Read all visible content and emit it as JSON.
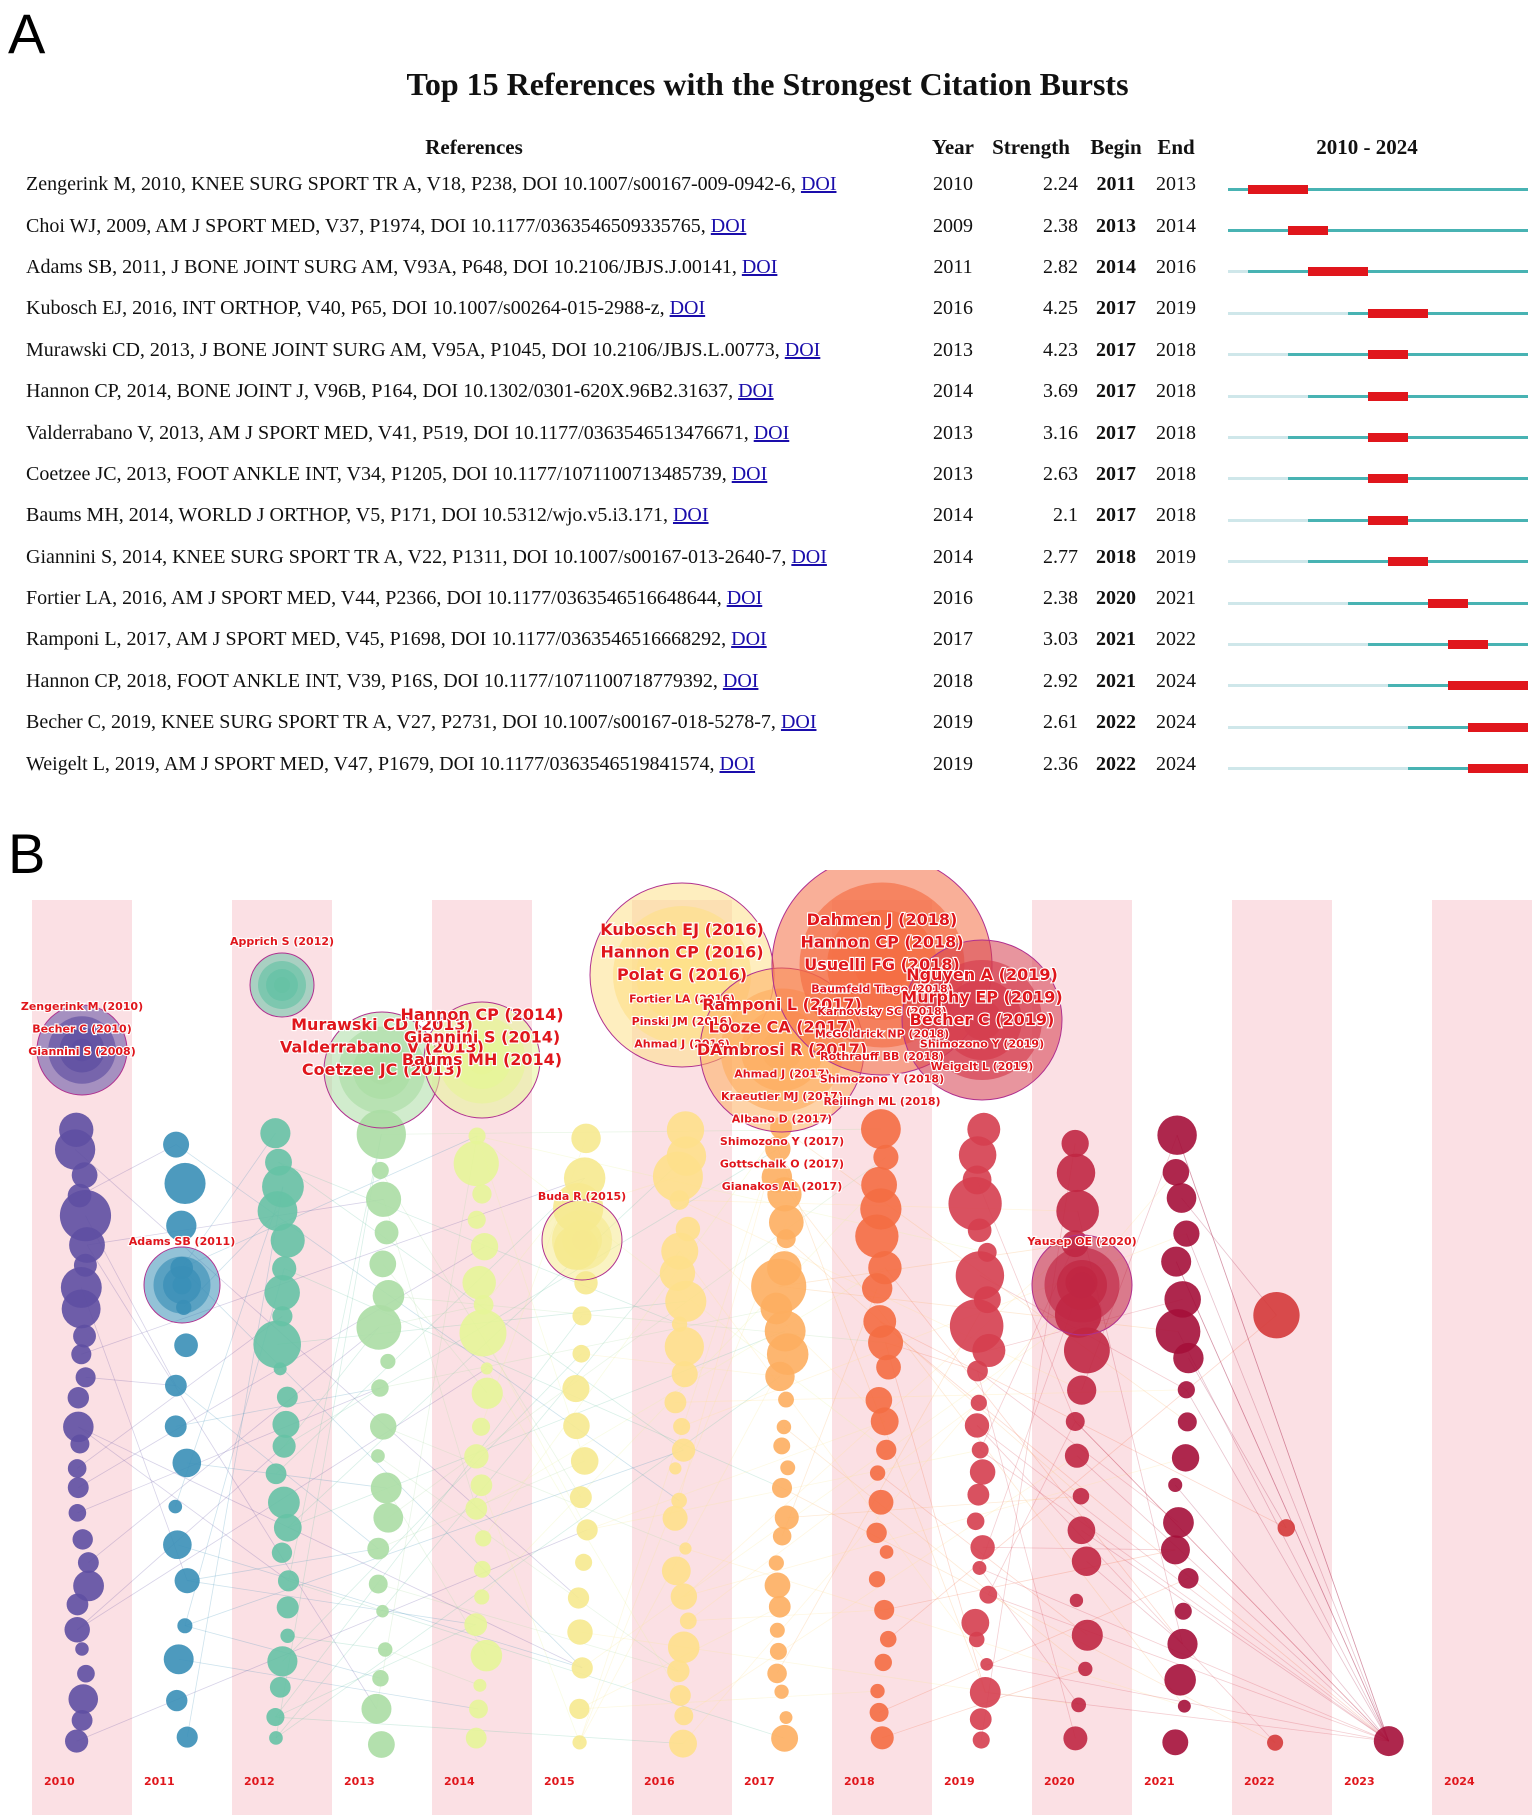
{
  "panel_a": {
    "letter": "A",
    "title": "Top 15 References with the Strongest Citation Bursts",
    "headers": {
      "references": "References",
      "year": "Year",
      "strength": "Strength",
      "begin": "Begin",
      "end": "End",
      "range": "2010 - 2024"
    },
    "doi_label": "DOI"
  },
  "panel_b": {
    "letter": "B"
  },
  "colors": {
    "burst": "#e0161c",
    "active": "#48b3b3",
    "inactive": "#cfe7ea",
    "stripe": "#fbe0e4"
  },
  "chart_data": [
    {
      "type": "table",
      "title": "Top 15 References with the Strongest Citation Bursts",
      "range": [
        2010,
        2024
      ],
      "rows": [
        {
          "ref": "Zengerink M, 2010, KNEE SURG SPORT TR A, V18, P238, DOI 10.1007/s00167-009-0942-6,",
          "year": 2010,
          "strength": "2.24",
          "begin": 2011,
          "end": 2013
        },
        {
          "ref": "Choi WJ, 2009, AM J SPORT MED, V37, P1974, DOI 10.1177/0363546509335765,",
          "year": 2009,
          "strength": "2.38",
          "begin": 2013,
          "end": 2014
        },
        {
          "ref": "Adams SB, 2011, J BONE JOINT SURG AM, V93A, P648, DOI 10.2106/JBJS.J.00141,",
          "year": 2011,
          "strength": "2.82",
          "begin": 2014,
          "end": 2016
        },
        {
          "ref": "Kubosch EJ, 2016, INT ORTHOP, V40, P65, DOI 10.1007/s00264-015-2988-z,",
          "year": 2016,
          "strength": "4.25",
          "begin": 2017,
          "end": 2019
        },
        {
          "ref": "Murawski CD, 2013, J BONE JOINT SURG AM, V95A, P1045, DOI 10.2106/JBJS.L.00773,",
          "year": 2013,
          "strength": "4.23",
          "begin": 2017,
          "end": 2018
        },
        {
          "ref": "Hannon CP, 2014, BONE JOINT J, V96B, P164, DOI 10.1302/0301-620X.96B2.31637,",
          "year": 2014,
          "strength": "3.69",
          "begin": 2017,
          "end": 2018
        },
        {
          "ref": "Valderrabano V, 2013, AM J SPORT MED, V41, P519, DOI 10.1177/0363546513476671,",
          "year": 2013,
          "strength": "3.16",
          "begin": 2017,
          "end": 2018
        },
        {
          "ref": "Coetzee JC, 2013, FOOT ANKLE INT, V34, P1205, DOI 10.1177/1071100713485739,",
          "year": 2013,
          "strength": "2.63",
          "begin": 2017,
          "end": 2018
        },
        {
          "ref": "Baums MH, 2014, WORLD J ORTHOP, V5, P171, DOI 10.5312/wjo.v5.i3.171,",
          "year": 2014,
          "strength": "2.1",
          "begin": 2017,
          "end": 2018
        },
        {
          "ref": "Giannini S, 2014, KNEE SURG SPORT TR A, V22, P1311, DOI 10.1007/s00167-013-2640-7,",
          "year": 2014,
          "strength": "2.77",
          "begin": 2018,
          "end": 2019
        },
        {
          "ref": "Fortier LA, 2016, AM J SPORT MED, V44, P2366, DOI 10.1177/0363546516648644,",
          "year": 2016,
          "strength": "2.38",
          "begin": 2020,
          "end": 2021
        },
        {
          "ref": "Ramponi L, 2017, AM J SPORT MED, V45, P1698, DOI 10.1177/0363546516668292,",
          "year": 2017,
          "strength": "3.03",
          "begin": 2021,
          "end": 2022
        },
        {
          "ref": "Hannon CP, 2018, FOOT ANKLE INT, V39, P16S, DOI 10.1177/1071100718779392,",
          "year": 2018,
          "strength": "2.92",
          "begin": 2021,
          "end": 2024
        },
        {
          "ref": "Becher C, 2019, KNEE SURG SPORT TR A, V27, P2731, DOI 10.1007/s00167-018-5278-7,",
          "year": 2019,
          "strength": "2.61",
          "begin": 2022,
          "end": 2024
        },
        {
          "ref": "Weigelt L, 2019, AM J SPORT MED, V47, P1679, DOI 10.1177/0363546519841574,",
          "year": 2019,
          "strength": "2.36",
          "begin": 2022,
          "end": 2024
        }
      ]
    },
    {
      "type": "scatter",
      "subtype": "timezone-network",
      "x": [
        2010,
        2011,
        2012,
        2013,
        2014,
        2015,
        2016,
        2017,
        2018,
        2019,
        2020,
        2021,
        2022,
        2023,
        2024
      ],
      "x_labels": [
        "2010",
        "2011",
        "2012",
        "2013",
        "2014",
        "2015",
        "2016",
        "2017",
        "2018",
        "2019",
        "2020",
        "2021",
        "2022",
        "2023",
        "2024"
      ],
      "node_labels": [
        {
          "text": "Zengerink M (2010)",
          "year": 2010
        },
        {
          "text": "Becher C (2010)",
          "year": 2010
        },
        {
          "text": "Giannini S (2008)",
          "year": 2010
        },
        {
          "text": "Adams SB (2011)",
          "year": 2011
        },
        {
          "text": "Apprich S (2012)",
          "year": 2012
        },
        {
          "text": "Murawski CD (2013)",
          "year": 2013
        },
        {
          "text": "Valderrabano V (2013)",
          "year": 2013
        },
        {
          "text": "Coetzee JC (2013)",
          "year": 2013
        },
        {
          "text": "Hannon CP (2014)",
          "year": 2014
        },
        {
          "text": "Giannini S (2014)",
          "year": 2014
        },
        {
          "text": "Baums MH (2014)",
          "year": 2014
        },
        {
          "text": "Buda R (2015)",
          "year": 2015
        },
        {
          "text": "Kubosch EJ (2016)",
          "year": 2016
        },
        {
          "text": "Hannon CP (2016)",
          "year": 2016
        },
        {
          "text": "Polat G (2016)",
          "year": 2016
        },
        {
          "text": "Fortier LA (2016)",
          "year": 2016
        },
        {
          "text": "Pinski JM (2016)",
          "year": 2016
        },
        {
          "text": "Ahmad J (2016)",
          "year": 2016
        },
        {
          "text": "Ramponi L (2017)",
          "year": 2017
        },
        {
          "text": "Looze CA (2017)",
          "year": 2017
        },
        {
          "text": "DAmbrosi R (2017)",
          "year": 2017
        },
        {
          "text": "Ahmad J (2017)",
          "year": 2017
        },
        {
          "text": "Kraeutler MJ (2017)",
          "year": 2017
        },
        {
          "text": "Albano D (2017)",
          "year": 2017
        },
        {
          "text": "Shimozono Y (2017)",
          "year": 2017
        },
        {
          "text": "Gottschalk O (2017)",
          "year": 2017
        },
        {
          "text": "Gianakos AL (2017)",
          "year": 2017
        },
        {
          "text": "Dahmen J (2018)",
          "year": 2018
        },
        {
          "text": "Hannon CP (2018)",
          "year": 2018
        },
        {
          "text": "Usuelli FG (2018)",
          "year": 2018
        },
        {
          "text": "Baumfeld Tiago (2018)",
          "year": 2018
        },
        {
          "text": "Karnovsky SC (2018)",
          "year": 2018
        },
        {
          "text": "McGoldrick NP (2018)",
          "year": 2018
        },
        {
          "text": "Rothrauff BB (2018)",
          "year": 2018
        },
        {
          "text": "Shimozono Y (2018)",
          "year": 2018
        },
        {
          "text": "Reilingh ML (2018)",
          "year": 2018
        },
        {
          "text": "Nguyen A (2019)",
          "year": 2019
        },
        {
          "text": "Murphy EP (2019)",
          "year": 2019
        },
        {
          "text": "Becher C (2019)",
          "year": 2019
        },
        {
          "text": "Shimozono Y (2019)",
          "year": 2019
        },
        {
          "text": "Weigelt L (2019)",
          "year": 2019
        },
        {
          "text": "Yausep OE (2020)",
          "year": 2020
        }
      ]
    }
  ]
}
